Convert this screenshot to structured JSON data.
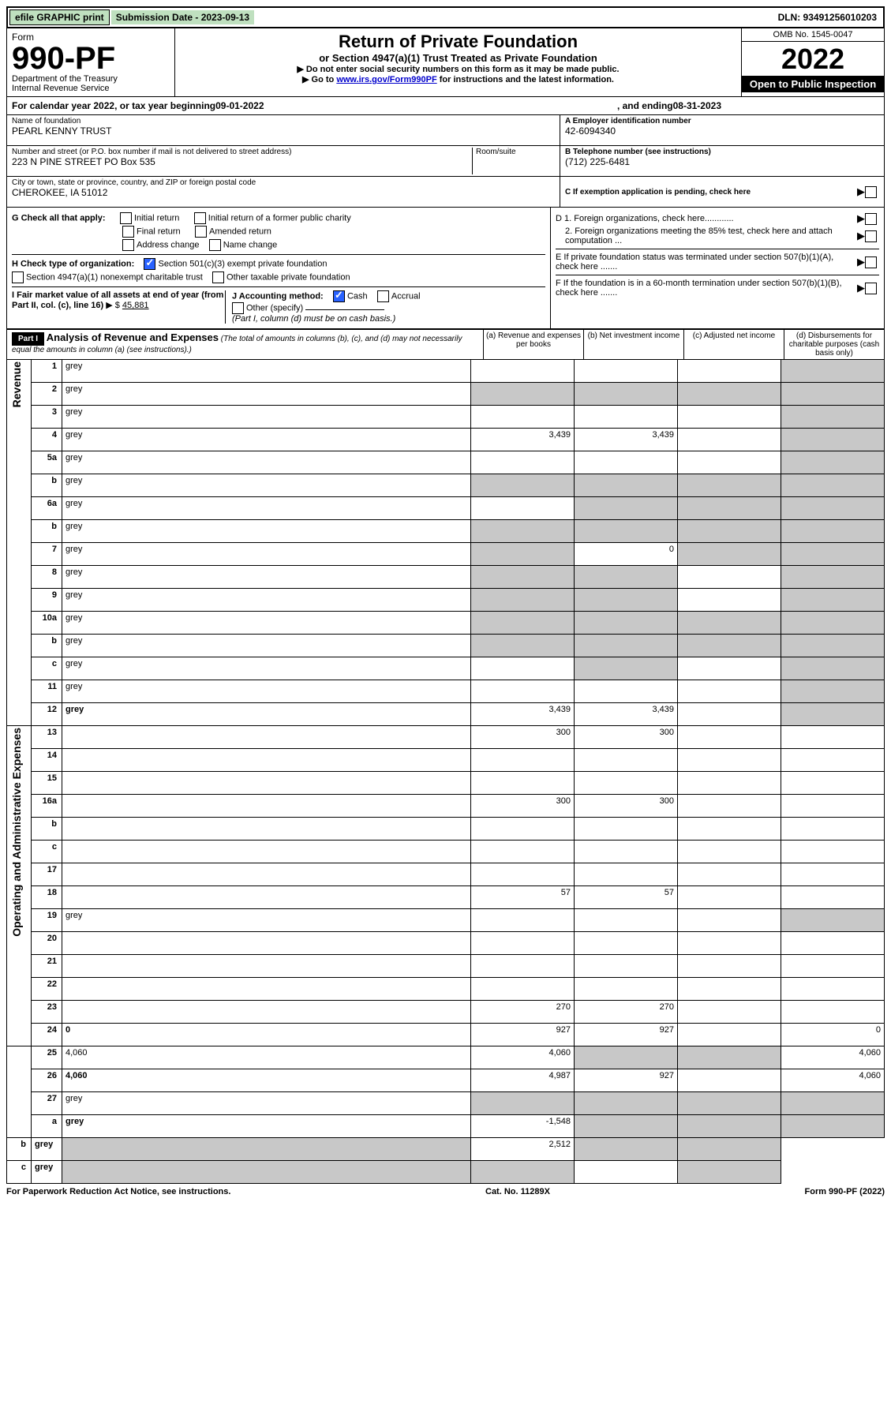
{
  "topbar": {
    "efile": "efile GRAPHIC print",
    "submission": "Submission Date - 2023-09-13",
    "dln": "DLN: 93491256010203"
  },
  "header": {
    "form_label": "Form",
    "form_no": "990-PF",
    "dept": "Department of the Treasury\nInternal Revenue Service",
    "title": "Return of Private Foundation",
    "subtitle": "or Section 4947(a)(1) Trust Treated as Private Foundation",
    "instr1": "▶ Do not enter social security numbers on this form as it may be made public.",
    "instr2_prefix": "▶ Go to ",
    "instr2_link": "www.irs.gov/Form990PF",
    "instr2_suffix": " for instructions and the latest information.",
    "omb": "OMB No. 1545-0047",
    "year": "2022",
    "open": "Open to Public Inspection"
  },
  "cal_year": {
    "prefix": "For calendar year 2022, or tax year beginning ",
    "begin": "09-01-2022",
    "mid": ", and ending ",
    "end": "08-31-2023"
  },
  "id": {
    "name_lbl": "Name of foundation",
    "name": "PEARL KENNY TRUST",
    "addr_lbl": "Number and street (or P.O. box number if mail is not delivered to street address)",
    "addr": "223 N PINE STREET PO Box 535",
    "room_lbl": "Room/suite",
    "city_lbl": "City or town, state or province, country, and ZIP or foreign postal code",
    "city": "CHEROKEE, IA  51012",
    "ein_lbl": "A Employer identification number",
    "ein": "42-6094340",
    "phone_lbl": "B Telephone number (see instructions)",
    "phone": "(712) 225-6481",
    "c": "C If exemption application is pending, check here",
    "d1": "D 1. Foreign organizations, check here............",
    "d2": "2. Foreign organizations meeting the 85% test, check here and attach computation ...",
    "e": "E  If private foundation status was terminated under section 507(b)(1)(A), check here .......",
    "f": "F  If the foundation is in a 60-month termination under section 507(b)(1)(B), check here ......."
  },
  "checks": {
    "g_lbl": "G Check all that apply:",
    "g1": "Initial return",
    "g2": "Initial return of a former public charity",
    "g3": "Final return",
    "g4": "Amended return",
    "g5": "Address change",
    "g6": "Name change",
    "h_lbl": "H Check type of organization:",
    "h1": "Section 501(c)(3) exempt private foundation",
    "h2": "Section 4947(a)(1) nonexempt charitable trust",
    "h3": "Other taxable private foundation",
    "i_lbl": "I Fair market value of all assets at end of year (from Part II, col. (c), line 16)",
    "i_val": "45,881",
    "j_lbl": "J Accounting method:",
    "j1": "Cash",
    "j2": "Accrual",
    "j3": "Other (specify)",
    "j_note": "(Part I, column (d) must be on cash basis.)"
  },
  "part1": {
    "label": "Part I",
    "title": "Analysis of Revenue and Expenses",
    "note": "(The total of amounts in columns (b), (c), and (d) may not necessarily equal the amounts in column (a) (see instructions).)",
    "col_a": "(a)  Revenue and expenses per books",
    "col_b": "(b)  Net investment income",
    "col_c": "(c)  Adjusted net income",
    "col_d": "(d)  Disbursements for charitable purposes (cash basis only)"
  },
  "sides": {
    "revenue": "Revenue",
    "expenses": "Operating and Administrative Expenses"
  },
  "rows": [
    {
      "n": "1",
      "d": "grey",
      "a": "",
      "b": "",
      "c": ""
    },
    {
      "n": "2",
      "d": "grey",
      "a": "grey",
      "b": "grey",
      "c": "grey"
    },
    {
      "n": "3",
      "d": "grey",
      "a": "",
      "b": "",
      "c": ""
    },
    {
      "n": "4",
      "d": "grey",
      "a": "3,439",
      "b": "3,439",
      "c": ""
    },
    {
      "n": "5a",
      "d": "grey",
      "a": "",
      "b": "",
      "c": ""
    },
    {
      "n": "b",
      "d": "grey",
      "a": "grey",
      "b": "grey",
      "c": "grey"
    },
    {
      "n": "6a",
      "d": "grey",
      "a": "",
      "b": "grey",
      "c": "grey"
    },
    {
      "n": "b",
      "d": "grey",
      "a": "grey",
      "b": "grey",
      "c": "grey"
    },
    {
      "n": "7",
      "d": "grey",
      "a": "grey",
      "b": "0",
      "c": "grey"
    },
    {
      "n": "8",
      "d": "grey",
      "a": "grey",
      "b": "grey",
      "c": ""
    },
    {
      "n": "9",
      "d": "grey",
      "a": "grey",
      "b": "grey",
      "c": ""
    },
    {
      "n": "10a",
      "d": "grey",
      "a": "grey",
      "b": "grey",
      "c": "grey"
    },
    {
      "n": "b",
      "d": "grey",
      "a": "grey",
      "b": "grey",
      "c": "grey"
    },
    {
      "n": "c",
      "d": "grey",
      "a": "",
      "b": "grey",
      "c": ""
    },
    {
      "n": "11",
      "d": "grey",
      "a": "",
      "b": "",
      "c": ""
    },
    {
      "n": "12",
      "d": "grey",
      "bold": true,
      "a": "3,439",
      "b": "3,439",
      "c": ""
    },
    {
      "n": "13",
      "d": "",
      "a": "300",
      "b": "300",
      "c": ""
    },
    {
      "n": "14",
      "d": "",
      "a": "",
      "b": "",
      "c": ""
    },
    {
      "n": "15",
      "d": "",
      "a": "",
      "b": "",
      "c": ""
    },
    {
      "n": "16a",
      "d": "",
      "a": "300",
      "b": "300",
      "c": ""
    },
    {
      "n": "b",
      "d": "",
      "a": "",
      "b": "",
      "c": ""
    },
    {
      "n": "c",
      "d": "",
      "a": "",
      "b": "",
      "c": ""
    },
    {
      "n": "17",
      "d": "",
      "a": "",
      "b": "",
      "c": ""
    },
    {
      "n": "18",
      "d": "",
      "a": "57",
      "b": "57",
      "c": ""
    },
    {
      "n": "19",
      "d": "grey",
      "a": "",
      "b": "",
      "c": ""
    },
    {
      "n": "20",
      "d": "",
      "a": "",
      "b": "",
      "c": ""
    },
    {
      "n": "21",
      "d": "",
      "a": "",
      "b": "",
      "c": ""
    },
    {
      "n": "22",
      "d": "",
      "a": "",
      "b": "",
      "c": ""
    },
    {
      "n": "23",
      "d": "",
      "a": "270",
      "b": "270",
      "c": ""
    },
    {
      "n": "24",
      "d": "0",
      "bold": true,
      "a": "927",
      "b": "927",
      "c": ""
    },
    {
      "n": "25",
      "d": "4,060",
      "a": "4,060",
      "b": "grey",
      "c": "grey"
    },
    {
      "n": "26",
      "d": "4,060",
      "bold": true,
      "a": "4,987",
      "b": "927",
      "c": ""
    },
    {
      "n": "27",
      "d": "grey",
      "a": "grey",
      "b": "grey",
      "c": "grey"
    },
    {
      "n": "a",
      "d": "grey",
      "bold": true,
      "a": "-1,548",
      "b": "grey",
      "c": "grey"
    },
    {
      "n": "b",
      "d": "grey",
      "bold": true,
      "a": "grey",
      "b": "2,512",
      "c": "grey"
    },
    {
      "n": "c",
      "d": "grey",
      "bold": true,
      "a": "grey",
      "b": "grey",
      "c": ""
    }
  ],
  "footer": {
    "left": "For Paperwork Reduction Act Notice, see instructions.",
    "mid": "Cat. No. 11289X",
    "right": "Form 990-PF (2022)"
  }
}
